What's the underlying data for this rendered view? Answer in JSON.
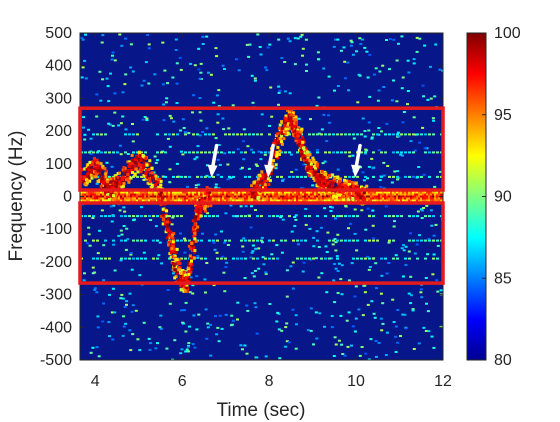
{
  "chart_data": {
    "type": "heatmap",
    "xlabel": "Time (sec)",
    "ylabel": "Frequency (Hz)",
    "xlim": [
      3.65,
      12
    ],
    "ylim": [
      -500,
      500
    ],
    "xticks": [
      "4",
      "6",
      "8",
      "10",
      "12"
    ],
    "xtick_values": [
      4,
      6,
      8,
      10,
      12
    ],
    "yticks": [
      "500",
      "400",
      "300",
      "200",
      "100",
      "0",
      "-100",
      "-200",
      "-300",
      "-400",
      "-500"
    ],
    "ytick_values": [
      500,
      400,
      300,
      200,
      100,
      0,
      -100,
      -200,
      -300,
      -400,
      -500
    ],
    "colorbar": {
      "colormap": "jet",
      "range": [
        80,
        100
      ],
      "ticks": [
        "100",
        "95",
        "90",
        "85",
        "80"
      ],
      "tick_values": [
        100,
        95,
        90,
        85,
        80
      ]
    },
    "highlight_boxes": [
      {
        "x": [
          3.65,
          12
        ],
        "y": [
          20,
          270
        ],
        "color": "#e41a1c"
      },
      {
        "x": [
          3.65,
          12
        ],
        "y": [
          -265,
          -20
        ],
        "color": "#e41a1c"
      }
    ],
    "arrows": [
      {
        "time": 6.7,
        "freq": 70
      },
      {
        "time": 8.0,
        "freq": 70
      },
      {
        "time": 10.0,
        "freq": 70
      }
    ],
    "signal_traces": [
      {
        "t": [
          3.7,
          4.0,
          4.3,
          4.6,
          5.0,
          5.4,
          5.7,
          5.9,
          6.1,
          6.3,
          6.6
        ],
        "f": [
          60,
          100,
          20,
          60,
          120,
          40,
          -120,
          -250,
          -260,
          -50,
          10
        ]
      },
      {
        "t": [
          7.6,
          7.9,
          8.2,
          8.45,
          8.6,
          8.8,
          9.1,
          9.4,
          9.8,
          10.2
        ],
        "f": [
          10,
          60,
          180,
          250,
          210,
          120,
          60,
          40,
          20,
          10
        ]
      }
    ],
    "grid": false
  }
}
